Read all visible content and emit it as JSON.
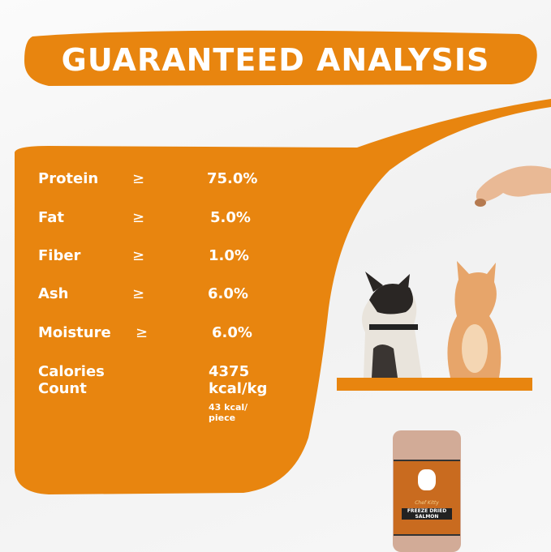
{
  "title": "GUARANTEED ANALYSIS",
  "colors": {
    "accent": "#e8850f",
    "text": "#ffffff"
  },
  "rows": [
    {
      "label": "Protein",
      "symbol": "≥",
      "value": "75.0%"
    },
    {
      "label": "Fat",
      "symbol": "≥",
      "value": "5.0%"
    },
    {
      "label": "Fiber",
      "symbol": "≥",
      "value": "1.0%"
    },
    {
      "label": "Ash",
      "symbol": "≥",
      "value": "6.0%"
    },
    {
      "label": "Moisture",
      "symbol": "≥",
      "value": "6.0%"
    }
  ],
  "calories": {
    "label_line1": "Calories",
    "label_line2": "Count",
    "value_line1": "4375",
    "value_line2": "kcal/kg",
    "per_piece": "43 kcal/ piece"
  },
  "jar": {
    "brand": "Chef Kitty",
    "product": "FREEZE DRIED SALMON"
  }
}
